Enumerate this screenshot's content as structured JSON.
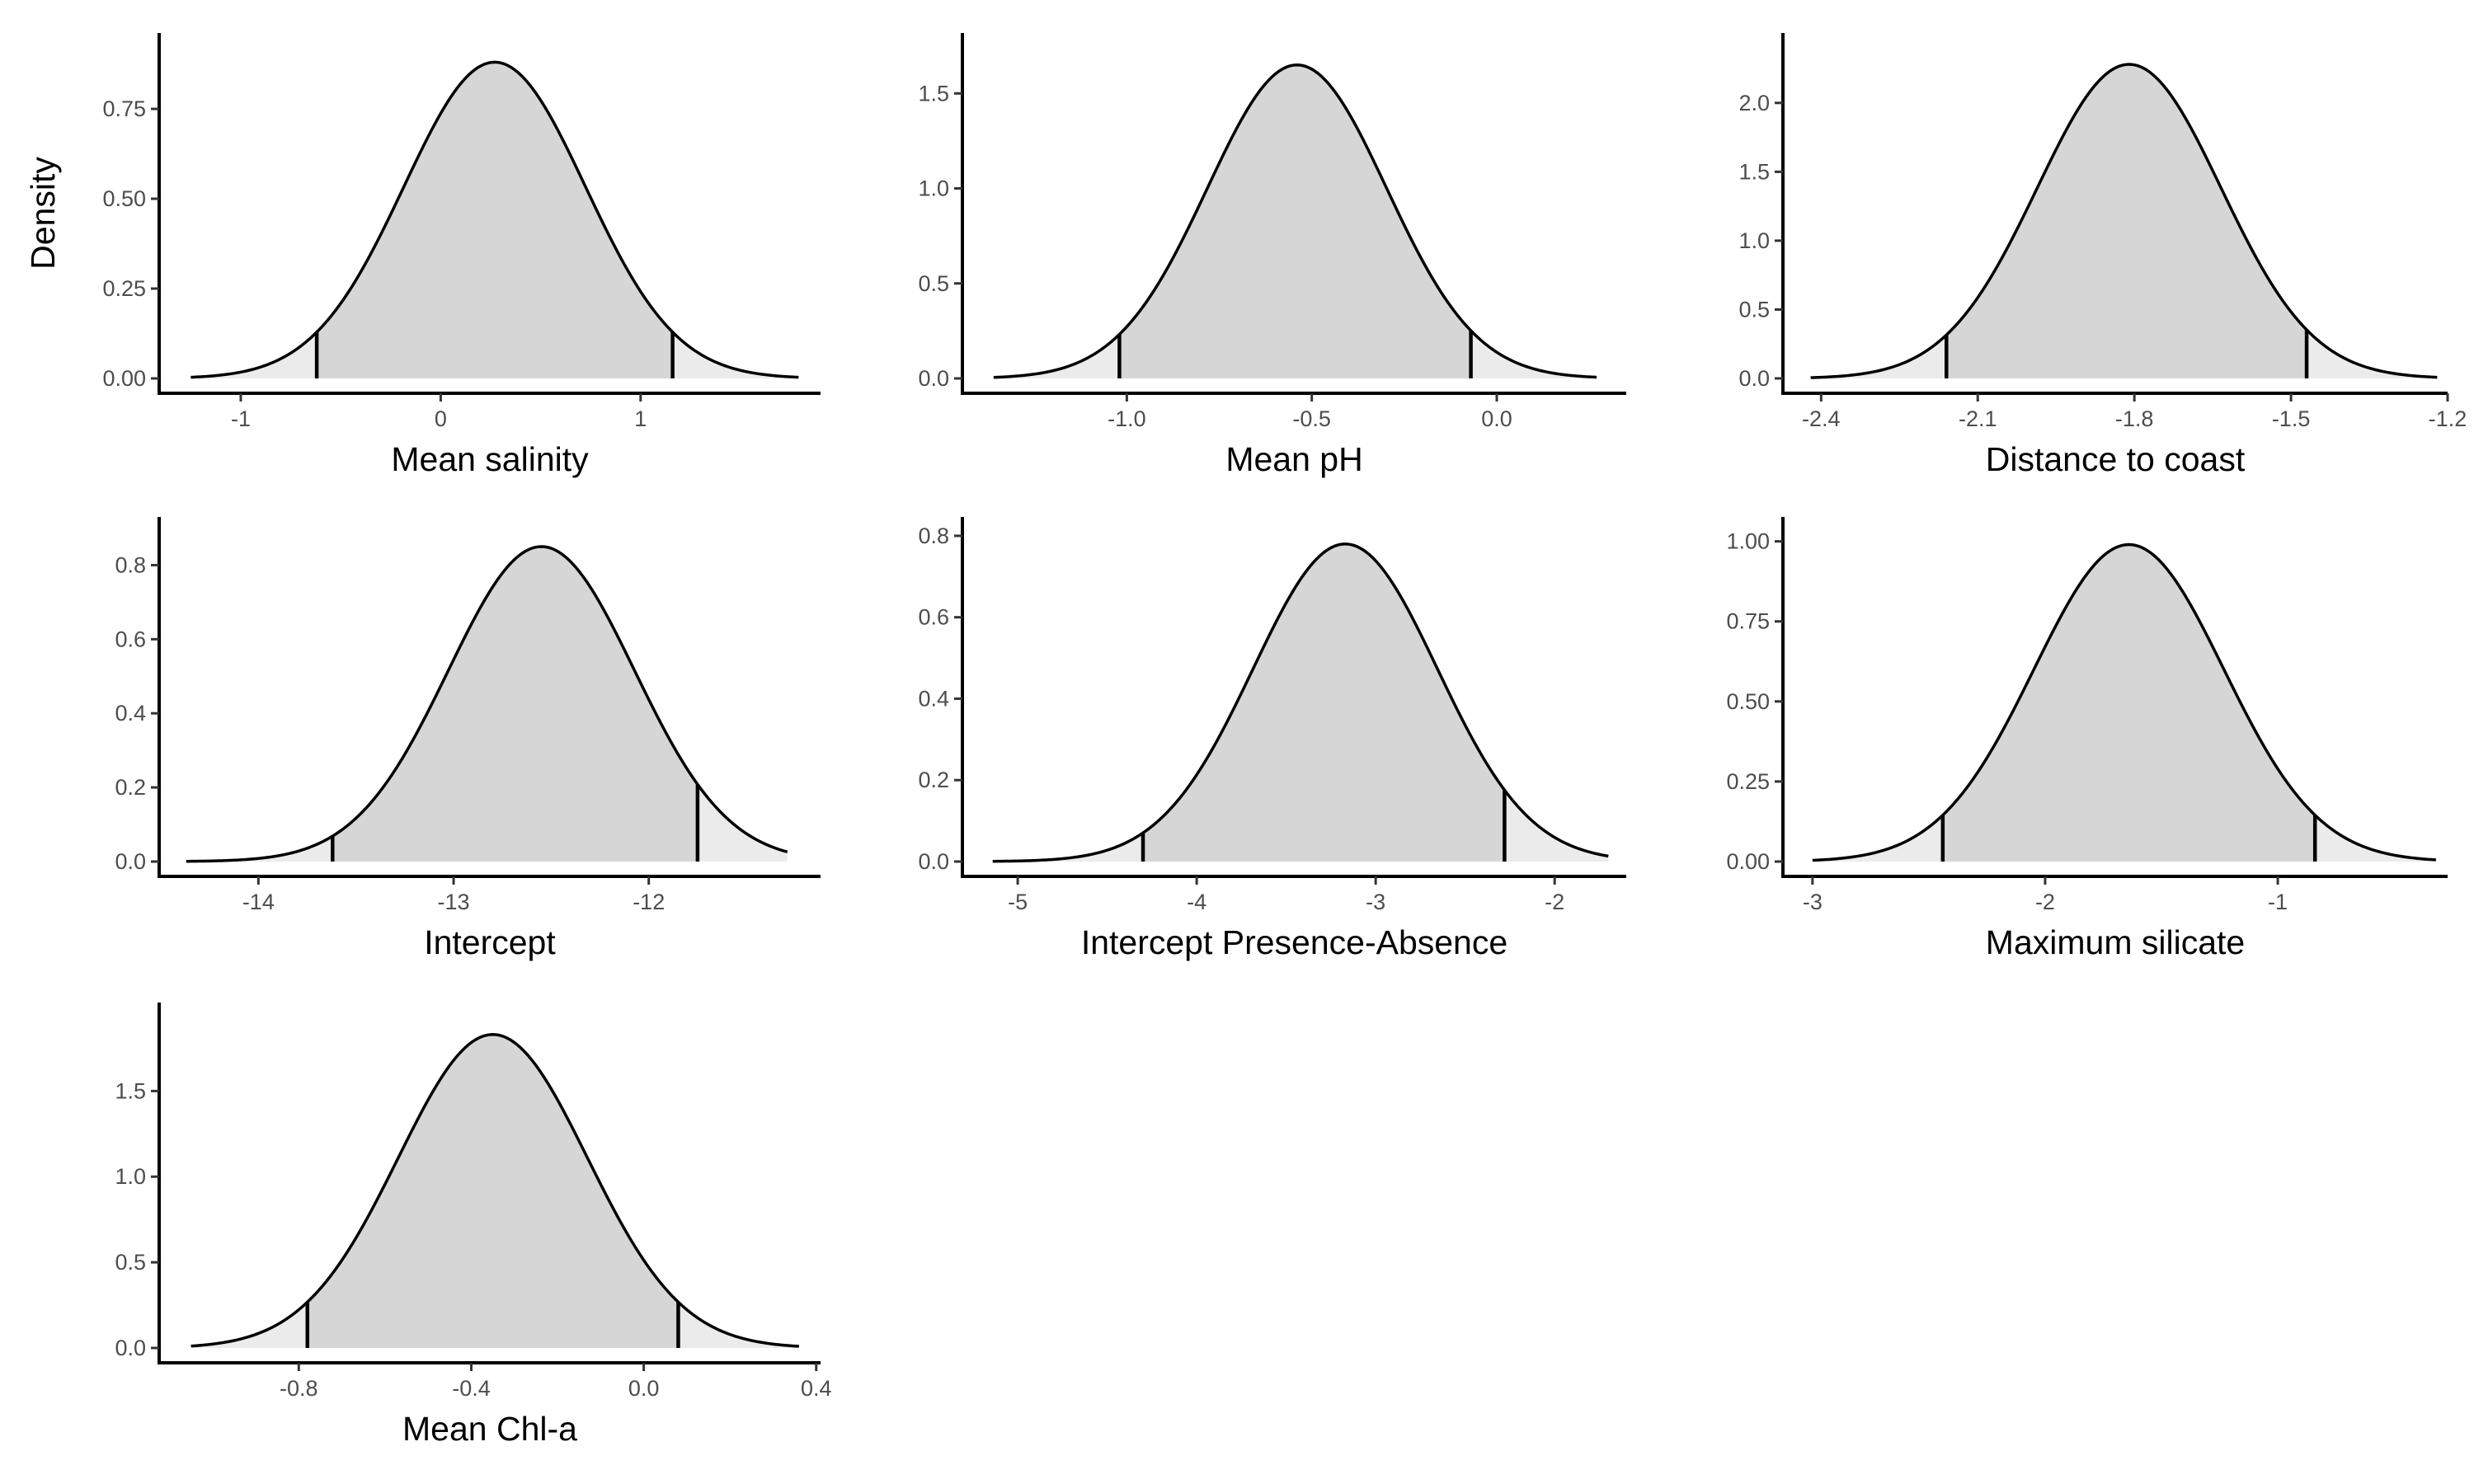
{
  "chart_data": [
    {
      "type": "area",
      "panel": "mean-salinity",
      "xlabel": "Mean salinity",
      "ylabel": "Density",
      "mean": 0.27,
      "ci": [
        -0.62,
        1.16
      ],
      "xlim": [
        -1.4,
        1.9
      ],
      "ylim": [
        0,
        0.92
      ],
      "curve_range": [
        -1.25,
        1.79
      ],
      "peak_density": 0.88,
      "xticks": [
        -1,
        0,
        1
      ],
      "xtick_labels": [
        "-1",
        "0",
        "1"
      ],
      "yticks": [
        0,
        0.25,
        0.5,
        0.75
      ],
      "ytick_labels": [
        "0.00",
        "0.25",
        "0.50",
        "0.75"
      ]
    },
    {
      "type": "area",
      "panel": "mean-ph",
      "xlabel": "Mean pH",
      "ylabel": "",
      "mean": -0.54,
      "ci": [
        -1.02,
        -0.07
      ],
      "xlim": [
        -1.44,
        0.35
      ],
      "ylim": [
        0,
        1.74
      ],
      "curve_range": [
        -1.36,
        0.27
      ],
      "peak_density": 1.65,
      "xticks": [
        -1.0,
        -0.5,
        0.0
      ],
      "xtick_labels": [
        "-1.0",
        "-0.5",
        "0.0"
      ],
      "yticks": [
        0,
        0.5,
        1.0,
        1.5
      ],
      "ytick_labels": [
        "0.0",
        "0.5",
        "1.0",
        "1.5"
      ]
    },
    {
      "type": "area",
      "panel": "distance-to-coast",
      "xlabel": "Distance to coast",
      "ylabel": "",
      "mean": -1.81,
      "ci": [
        -2.16,
        -1.47
      ],
      "xlim": [
        -2.47,
        -1.2
      ],
      "ylim": [
        0,
        2.4
      ],
      "curve_range": [
        -2.42,
        -1.22
      ],
      "peak_density": 2.28,
      "xticks": [
        -2.4,
        -2.1,
        -1.8,
        -1.5,
        -1.2
      ],
      "xtick_labels": [
        "-2.4",
        "-2.1",
        "-1.8",
        "-1.5",
        "-1.2"
      ],
      "yticks": [
        0,
        0.5,
        1.0,
        1.5,
        2.0
      ],
      "ytick_labels": [
        "0.0",
        "0.5",
        "1.0",
        "1.5",
        "2.0"
      ]
    },
    {
      "type": "area",
      "panel": "intercept",
      "xlabel": "Intercept",
      "ylabel": "",
      "mean": -12.55,
      "ci": [
        -13.62,
        -11.75
      ],
      "xlim": [
        -14.5,
        -11.12
      ],
      "ylim": [
        0,
        0.89
      ],
      "curve_range": [
        -14.37,
        -11.29
      ],
      "peak_density": 0.85,
      "xticks": [
        -14,
        -13,
        -12
      ],
      "xtick_labels": [
        "-14",
        "-13",
        "-12"
      ],
      "yticks": [
        0,
        0.2,
        0.4,
        0.6,
        0.8
      ],
      "ytick_labels": [
        "0.0",
        "0.2",
        "0.4",
        "0.6",
        "0.8"
      ]
    },
    {
      "type": "area",
      "panel": "intercept-presence-absence",
      "xlabel": "Intercept Presence-Absence",
      "ylabel": "",
      "mean": -3.17,
      "ci": [
        -4.3,
        -2.28
      ],
      "xlim": [
        -5.3,
        -1.6
      ],
      "ylim": [
        0,
        0.81
      ],
      "curve_range": [
        -5.14,
        -1.7
      ],
      "peak_density": 0.78,
      "xticks": [
        -5,
        -4,
        -3,
        -2
      ],
      "xtick_labels": [
        "-5",
        "-4",
        "-3",
        "-2"
      ],
      "yticks": [
        0,
        0.2,
        0.4,
        0.6,
        0.8
      ],
      "ytick_labels": [
        "0.0",
        "0.2",
        "0.4",
        "0.6",
        "0.8"
      ]
    },
    {
      "type": "area",
      "panel": "maximum-silicate",
      "xlabel": "Maximum silicate",
      "ylabel": "",
      "mean": -1.64,
      "ci": [
        -2.44,
        -0.84
      ],
      "xlim": [
        -3.12,
        -0.27
      ],
      "ylim": [
        0,
        1.03
      ],
      "curve_range": [
        -3.0,
        -0.32
      ],
      "peak_density": 0.99,
      "xticks": [
        -3,
        -2,
        -1
      ],
      "xtick_labels": [
        "-3",
        "-2",
        "-1"
      ],
      "yticks": [
        0,
        0.25,
        0.5,
        0.75,
        1.0
      ],
      "ytick_labels": [
        "0.00",
        "0.25",
        "0.50",
        "0.75",
        "1.00"
      ]
    },
    {
      "type": "area",
      "panel": "mean-chl-a",
      "xlabel": "Mean Chl-a",
      "ylabel": "",
      "mean": -0.35,
      "ci": [
        -0.78,
        0.08
      ],
      "xlim": [
        -1.12,
        0.41
      ],
      "ylim": [
        0,
        1.93
      ],
      "curve_range": [
        -1.05,
        0.36
      ],
      "peak_density": 1.83,
      "xticks": [
        -0.8,
        -0.4,
        0.0,
        0.4
      ],
      "xtick_labels": [
        "-0.8",
        "-0.4",
        "0.0",
        "0.4"
      ],
      "yticks": [
        0,
        0.5,
        1.0,
        1.5
      ],
      "ytick_labels": [
        "0.0",
        "0.5",
        "1.0",
        "1.5"
      ]
    }
  ],
  "colors": {
    "credible_fill": "#d6d6d6",
    "tail_fill": "#ebebeb",
    "curve": "#000000",
    "axis": "#000000",
    "tick_text": "#4d4d4d"
  }
}
